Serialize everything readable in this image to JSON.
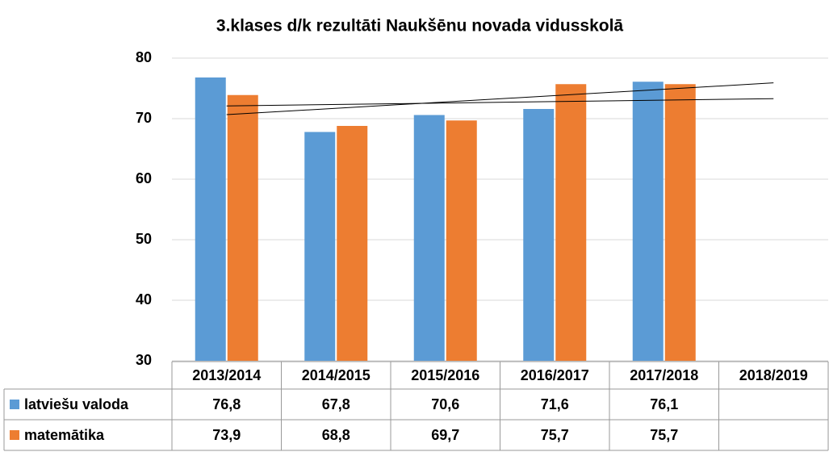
{
  "chart_data": {
    "type": "bar",
    "title": "3.klases d/k rezultāti Naukšēnu novada vidusskolā",
    "categories": [
      "2013/2014",
      "2014/2015",
      "2015/2016",
      "2016/2017",
      "2017/2018",
      "2018/2019"
    ],
    "series": [
      {
        "name": "latviešu valoda",
        "color": "#5b9bd5",
        "values": [
          76.8,
          67.8,
          70.6,
          71.6,
          76.1,
          null
        ],
        "value_labels": [
          "76,8",
          "67,8",
          "70,6",
          "71,6",
          "76,1",
          null
        ]
      },
      {
        "name": "matemātika",
        "color": "#ed7d31",
        "values": [
          73.9,
          68.8,
          69.7,
          75.7,
          75.7,
          null
        ],
        "value_labels": [
          "73,9",
          "68,8",
          "69,7",
          "75,7",
          "75,7",
          null
        ]
      }
    ],
    "ylim": [
      30,
      80
    ],
    "yticks": [
      30,
      40,
      50,
      60,
      70,
      80
    ],
    "grid": true,
    "trendline": true,
    "data_table": true
  }
}
